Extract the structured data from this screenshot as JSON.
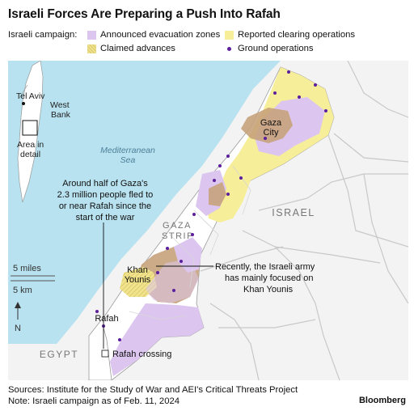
{
  "title": "Israeli Forces Are Preparing a Push Into Rafah",
  "legend": {
    "lead": "Israeli campaign:",
    "items": [
      {
        "label": "Announced evacuation zones",
        "color": "#dcc6ef"
      },
      {
        "label": "Reported clearing operations",
        "color": "#f7ee9a"
      },
      {
        "label": "Claimed advances",
        "color": "#f1e38c"
      },
      {
        "label": "Ground operations",
        "color": "#5b1e9c"
      }
    ]
  },
  "colors": {
    "sea": "#b8e2ef",
    "land": "#f3f3f3",
    "gaza": "#ffffff",
    "evacuation": "#dcc6ef",
    "clearing": "#f7ee9a",
    "claimed": "#f1e38c",
    "dense": "#c6a27b",
    "ground_op": "#5b1e9c"
  },
  "inset": {
    "tel_aviv": "Tel Aviv",
    "west_bank_1": "West",
    "west_bank_2": "Bank",
    "area_1": "Area in",
    "area_2": "detail"
  },
  "labels": {
    "sea_1": "Mediterranean",
    "sea_2": "Sea",
    "israel": "ISRAEL",
    "gaza_strip_1": "GAZA",
    "gaza_strip_2": "STRIP",
    "egypt": "EGYPT",
    "gaza_city_1": "Gaza",
    "gaza_city_2": "City",
    "khan_younis_1": "Khan",
    "khan_younis_2": "Younis",
    "rafah": "Rafah",
    "rafah_crossing": "Rafah crossing"
  },
  "annotations": {
    "rafah_note": [
      "Around half of Gaza's",
      "2.3 million people fled to",
      "or near Rafah since the",
      "start of the war"
    ],
    "khan_note": [
      "Recently, the Israeli army",
      "has mainly focused on",
      "Khan Younis"
    ]
  },
  "scale": {
    "miles": "5 miles",
    "km": "5 km",
    "north": "N"
  },
  "footer": {
    "source": "Sources: Institute for the Study of War and AEI's Critical Threats Project",
    "note": "Note: Israeli campaign as of Feb. 11, 2024",
    "brand": "Bloomberg"
  }
}
